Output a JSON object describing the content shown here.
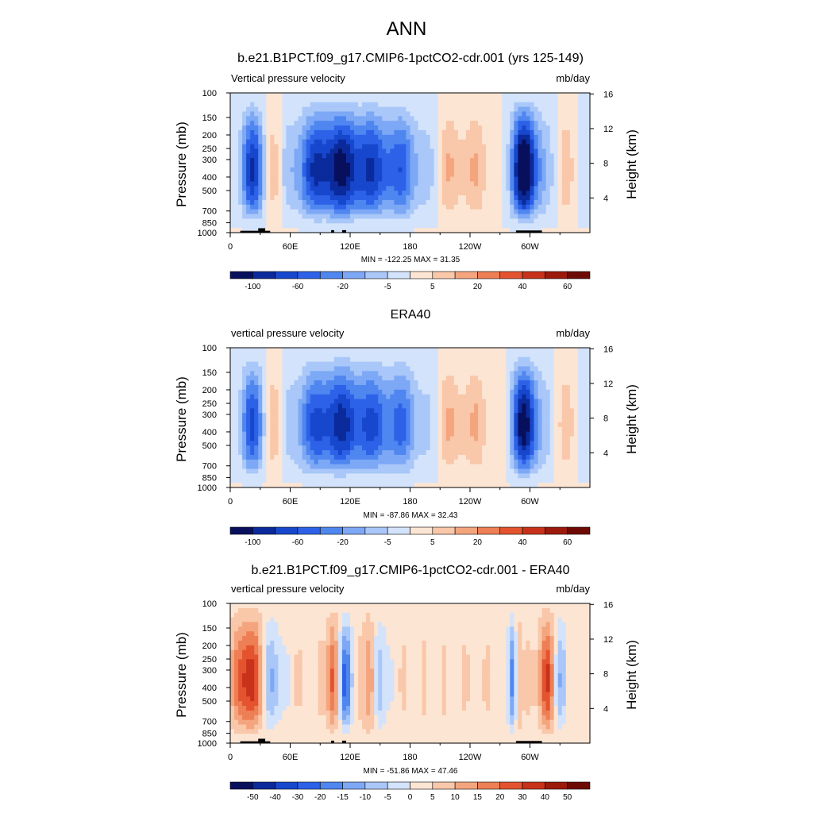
{
  "figure": {
    "main_title": "ANN"
  },
  "chart_data": [
    {
      "type": "heatmap",
      "title": "b.e21.B1PCT.f09_g17.CMIP6-1pctCO2-cdr.001 (yrs 125-149)",
      "left_label": "Vertical pressure velocity",
      "right_label": "mb/day",
      "xlabel": "",
      "ylabel": "Pressure (mb)",
      "ylabel_right": "Height (km)",
      "x_ticks": [
        "0",
        "60E",
        "120E",
        "180",
        "120W",
        "60W"
      ],
      "y_ticks": [
        "100",
        "150",
        "200",
        "250",
        "300",
        "400",
        "500",
        "700",
        "850",
        "1000"
      ],
      "y_right_ticks": [
        "16",
        "12",
        "8",
        "4"
      ],
      "stats": "MIN = -122.25  MAX =  31.35",
      "colorbar_labels": [
        "-100",
        "-60",
        "-20",
        "-5",
        "5",
        "20",
        "40",
        "60"
      ],
      "min": -122.25,
      "max": 31.35,
      "palette": "blue-white-red",
      "pattern": "model"
    },
    {
      "type": "heatmap",
      "title": "ERA40",
      "left_label": "vertical pressure velocity",
      "right_label": "mb/day",
      "xlabel": "",
      "ylabel": "Pressure (mb)",
      "ylabel_right": "Height (km)",
      "x_ticks": [
        "0",
        "60E",
        "120E",
        "180",
        "120W",
        "60W"
      ],
      "y_ticks": [
        "100",
        "150",
        "200",
        "250",
        "300",
        "400",
        "500",
        "700",
        "850",
        "1000"
      ],
      "y_right_ticks": [
        "16",
        "12",
        "8",
        "4"
      ],
      "stats": "MIN = -87.86  MAX =  32.43",
      "colorbar_labels": [
        "-100",
        "-60",
        "-20",
        "-5",
        "5",
        "20",
        "40",
        "60"
      ],
      "min": -87.86,
      "max": 32.43,
      "palette": "blue-white-red",
      "pattern": "obs"
    },
    {
      "type": "heatmap",
      "title": "b.e21.B1PCT.f09_g17.CMIP6-1pctCO2-cdr.001 - ERA40",
      "left_label": "vertical pressure velocity",
      "right_label": "mb/day",
      "xlabel": "",
      "ylabel": "Pressure (mb)",
      "ylabel_right": "Height (km)",
      "x_ticks": [
        "0",
        "60E",
        "120E",
        "180",
        "120W",
        "60W"
      ],
      "y_ticks": [
        "100",
        "150",
        "200",
        "250",
        "300",
        "400",
        "500",
        "700",
        "850",
        "1000"
      ],
      "y_right_ticks": [
        "16",
        "12",
        "8",
        "4"
      ],
      "stats": "MIN = -51.86  MAX =  47.46",
      "colorbar_labels": [
        "-50",
        "-40",
        "-30",
        "-20",
        "-15",
        "-10",
        "-5",
        "0",
        "5",
        "10",
        "15",
        "20",
        "30",
        "40",
        "50"
      ],
      "min": -51.86,
      "max": 47.46,
      "palette": "blue-white-red",
      "pattern": "diff"
    }
  ]
}
